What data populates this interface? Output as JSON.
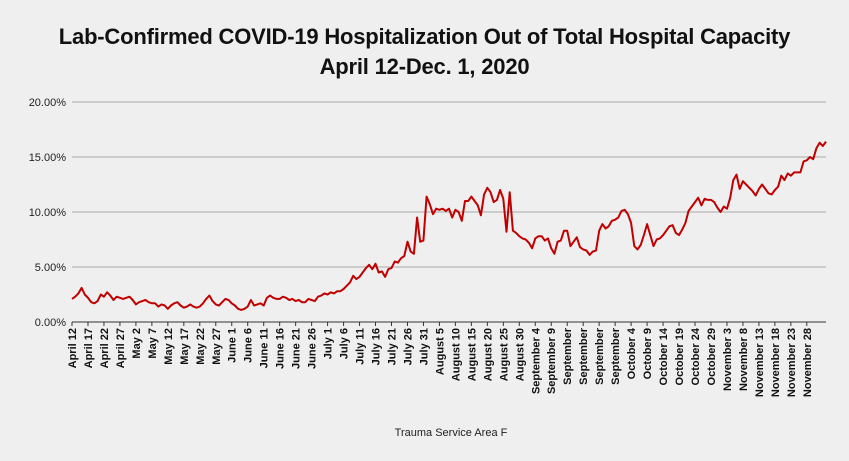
{
  "chart_data": {
    "type": "line",
    "title": [
      "Lab-Confirmed COVID-19 Hospitalization Out of Total Hospital Capacity",
      "April 12-Dec. 1, 2020"
    ],
    "xlabel": "Trauma Service Area F",
    "ylabel": "",
    "ylim": [
      0,
      20
    ],
    "yticks": [
      "0.00%",
      "5.00%",
      "10.00%",
      "15.00%",
      "20.00%"
    ],
    "grid": "horizontal",
    "color": "#c00000",
    "x_range": [
      "April 12",
      "December 1"
    ],
    "xtick_labels": [
      "April 12",
      "April 17",
      "April 22",
      "April 27",
      "May 2",
      "May 7",
      "May 12",
      "May 17",
      "May 22",
      "May 27",
      "June 1",
      "June 6",
      "June 11",
      "June 16",
      "June 21",
      "June 26",
      "July 1",
      "July 6",
      "July 11",
      "July 16",
      "July 21",
      "July 26",
      "July 31",
      "August 5",
      "August 10",
      "August 15",
      "August 20",
      "August 25",
      "August 30",
      "September 4",
      "September 9",
      "September",
      "September",
      "September",
      "September",
      "October 4",
      "October 9",
      "October 14",
      "October 19",
      "October 24",
      "October 29",
      "November 3",
      "November 8",
      "November 13",
      "November 18",
      "November 23",
      "November 28"
    ],
    "values": [
      2.1,
      2.3,
      2.6,
      3.1,
      2.5,
      2.2,
      1.8,
      1.7,
      1.9,
      2.5,
      2.3,
      2.7,
      2.4,
      2.0,
      2.3,
      2.2,
      2.1,
      2.2,
      2.3,
      2.0,
      1.6,
      1.8,
      1.9,
      2.0,
      1.8,
      1.7,
      1.7,
      1.4,
      1.6,
      1.5,
      1.2,
      1.5,
      1.7,
      1.8,
      1.5,
      1.3,
      1.4,
      1.6,
      1.4,
      1.3,
      1.4,
      1.7,
      2.1,
      2.4,
      1.9,
      1.6,
      1.5,
      1.8,
      2.1,
      2.0,
      1.7,
      1.5,
      1.2,
      1.1,
      1.2,
      1.4,
      2.0,
      1.5,
      1.6,
      1.7,
      1.5,
      2.2,
      2.4,
      2.2,
      2.1,
      2.1,
      2.3,
      2.2,
      2.0,
      2.1,
      1.9,
      2.0,
      1.8,
      1.8,
      2.1,
      2.0,
      1.9,
      2.3,
      2.4,
      2.6,
      2.5,
      2.7,
      2.6,
      2.8,
      2.8,
      3.0,
      3.3,
      3.6,
      4.2,
      3.9,
      4.1,
      4.5,
      4.9,
      5.2,
      4.8,
      5.3,
      4.5,
      4.6,
      4.1,
      4.8,
      4.9,
      5.5,
      5.4,
      5.8,
      6.0,
      7.3,
      6.4,
      6.2,
      9.5,
      7.3,
      7.4,
      11.4,
      10.7,
      9.8,
      10.3,
      10.2,
      10.3,
      10.1,
      10.3,
      9.5,
      10.2,
      10.0,
      9.2,
      11.0,
      11.0,
      11.4,
      11.0,
      10.6,
      9.7,
      11.6,
      12.2,
      11.8,
      10.9,
      11.1,
      12.0,
      11.2,
      8.2,
      11.8,
      8.3,
      8.1,
      7.8,
      7.6,
      7.5,
      7.2,
      6.7,
      7.6,
      7.8,
      7.8,
      7.4,
      7.6,
      6.7,
      6.2,
      7.3,
      7.4,
      8.3,
      8.3,
      6.9,
      7.3,
      7.7,
      6.8,
      6.6,
      6.5,
      6.1,
      6.4,
      6.5,
      8.3,
      8.9,
      8.5,
      8.7,
      9.2,
      9.3,
      9.5,
      10.1,
      10.2,
      9.8,
      9.0,
      6.9,
      6.6,
      7.0,
      7.9,
      8.9,
      7.9,
      6.9,
      7.5,
      7.6,
      7.9,
      8.3,
      8.7,
      8.8,
      8.1,
      7.9,
      8.4,
      9.0,
      10.1,
      10.5,
      10.9,
      11.3,
      10.6,
      11.2,
      11.1,
      11.1,
      10.9,
      10.4,
      10.0,
      10.5,
      10.3,
      11.3,
      12.9,
      13.4,
      12.1,
      12.8,
      12.5,
      12.2,
      11.9,
      11.5,
      12.1,
      12.5,
      12.1,
      11.7,
      11.6,
      12.0,
      12.3,
      13.3,
      12.9,
      13.5,
      13.3,
      13.6,
      13.6,
      13.6,
      14.6,
      14.7,
      15.0,
      14.8,
      15.8,
      16.3,
      16.0,
      16.4
    ]
  }
}
